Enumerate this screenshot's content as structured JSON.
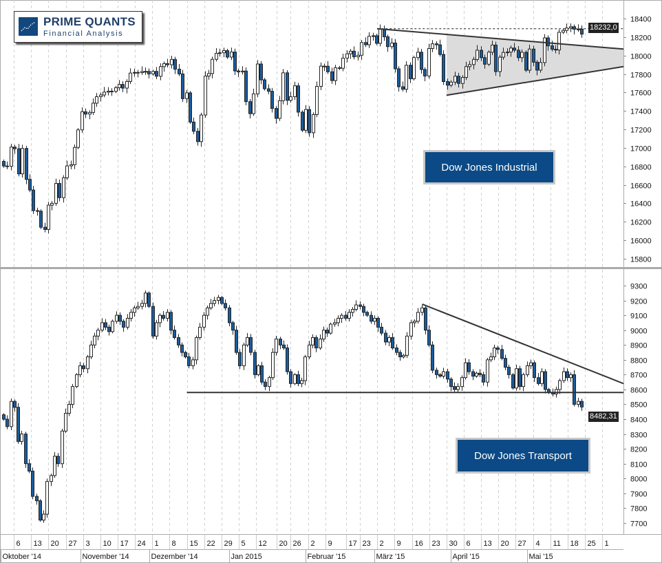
{
  "logo": {
    "title": "PRIME QUANTS",
    "subtitle": "Financial Analysis"
  },
  "colors": {
    "down_candle": "#1a5c9e",
    "up_candle": "#ffffff",
    "outline": "#222222",
    "triangle_fill": "#dcdcdc",
    "tag_bg": "#0b4a86"
  },
  "chart_data": [
    {
      "type": "candlestick",
      "title": "Dow Jones Industrial",
      "start_date": "2014-10-01",
      "end_date": "2015-05-22",
      "last_price_label": "18232,0",
      "ylim": [
        15700,
        18500
      ],
      "yticks": [
        18400,
        18200,
        18000,
        17800,
        17600,
        17400,
        17200,
        17000,
        16800,
        16600,
        16400,
        16200,
        16000,
        15800
      ],
      "closes": [
        16804,
        16801,
        17009,
        16991,
        16719,
        16994,
        16659,
        16544,
        16321,
        16315,
        16141,
        16117,
        16380,
        16400,
        16615,
        16461,
        16677,
        16805,
        16818,
        17005,
        17195,
        17391,
        17366,
        17384,
        17484,
        17554,
        17573,
        17604,
        17614,
        17612,
        17652,
        17687,
        17647,
        17719,
        17810,
        17817,
        17815,
        17827,
        17828,
        17801,
        17828,
        17776,
        17880,
        17912,
        17900,
        17958,
        17852,
        17801,
        17533,
        17596,
        17280,
        17180,
        17068,
        17356,
        17778,
        17805,
        17959,
        18024,
        18030,
        18053,
        17983,
        18038,
        17833,
        17823,
        17832,
        17501,
        17371,
        17585,
        17908,
        17737,
        17640,
        17613,
        17427,
        17320,
        17511,
        17813,
        17515,
        17554,
        17672,
        17387,
        17191,
        17416,
        17164,
        17361,
        17666,
        17885,
        17884,
        17824,
        17729,
        17868,
        17862,
        17972,
        18019,
        18047,
        17986,
        18003,
        18141,
        18117,
        18209,
        18214,
        18132,
        18288,
        18203,
        18096,
        18136,
        17856,
        17662,
        17635,
        17895,
        17749,
        17978,
        18036,
        17849,
        17778,
        18076,
        18127,
        18116,
        18012,
        17718,
        17679,
        17712,
        17776,
        17698,
        17763,
        17880,
        17902,
        17958,
        18057,
        17977,
        17906,
        18036,
        18113,
        17826,
        17982,
        18034,
        18038,
        18081,
        18058,
        17977,
        18035,
        17841,
        18070,
        17928,
        17842,
        17924,
        18191,
        18105,
        18068,
        18060,
        18252,
        18272,
        18298,
        18312,
        18285,
        18286,
        18232
      ],
      "annotations": {
        "resistance_dashed": {
          "from": "2015-03-02",
          "value": 18290
        },
        "triangle_upper": {
          "from": [
            "2015-03-02",
            18290
          ],
          "to": [
            "2015-06-03",
            18070
          ]
        },
        "triangle_lower": {
          "from": [
            "2015-03-30",
            17570
          ],
          "to": [
            "2015-06-03",
            17880
          ]
        }
      }
    },
    {
      "type": "candlestick",
      "title": "Dow Jones Transport",
      "start_date": "2014-10-01",
      "end_date": "2015-05-22",
      "last_price_label": "8482,31",
      "ylim": [
        7600,
        9400
      ],
      "yticks": [
        9300,
        9200,
        9100,
        9000,
        8900,
        8800,
        8700,
        8600,
        8500,
        8400,
        8300,
        8200,
        8100,
        8000,
        7900,
        7800,
        7700
      ],
      "closes": [
        8400,
        8350,
        8520,
        8480,
        8250,
        8300,
        8100,
        8050,
        7880,
        7850,
        7720,
        7760,
        7980,
        8020,
        8150,
        8100,
        8320,
        8440,
        8500,
        8620,
        8700,
        8760,
        8740,
        8820,
        8900,
        8960,
        9000,
        9050,
        9020,
        8990,
        9060,
        9100,
        9060,
        9020,
        9080,
        9120,
        9150,
        9160,
        9180,
        9250,
        9160,
        8960,
        9050,
        9100,
        9080,
        9120,
        9000,
        8950,
        8900,
        8850,
        8820,
        8760,
        8800,
        8950,
        9020,
        9100,
        9150,
        9180,
        9200,
        9220,
        9180,
        9150,
        9050,
        9000,
        8850,
        8760,
        8900,
        8950,
        8850,
        8700,
        8760,
        8650,
        8620,
        8680,
        8850,
        8940,
        8900,
        8880,
        8720,
        8640,
        8700,
        8640,
        8660,
        8820,
        8900,
        8950,
        8880,
        8940,
        9000,
        8980,
        9040,
        9050,
        9080,
        9100,
        9080,
        9120,
        9140,
        9170,
        9160,
        9120,
        9100,
        9060,
        9080,
        9020,
        8980,
        8920,
        8950,
        8880,
        8850,
        8820,
        8830,
        8960,
        9050,
        9060,
        9120,
        9150,
        9000,
        8900,
        8730,
        8700,
        8690,
        8720,
        8670,
        8620,
        8600,
        8620,
        8680,
        8780,
        8720,
        8690,
        8710,
        8700,
        8650,
        8800,
        8820,
        8880,
        8870,
        8810,
        8750,
        8700,
        8610,
        8740,
        8620,
        8700,
        8760,
        8780,
        8680,
        8640,
        8720,
        8600,
        8580,
        8570,
        8600,
        8660,
        8720,
        8680,
        8700,
        8500,
        8520,
        8482
      ],
      "annotations": {
        "support": {
          "from": "2014-12-15",
          "value": 8580
        },
        "resistance": {
          "from": [
            "2015-03-19",
            9175
          ],
          "to": [
            "2015-06-03",
            8640
          ]
        }
      }
    }
  ],
  "x_axis": {
    "day_ticks": [
      {
        "date": "2014-10-06",
        "label": "6"
      },
      {
        "date": "2014-10-13",
        "label": "13"
      },
      {
        "date": "2014-10-20",
        "label": "20"
      },
      {
        "date": "2014-10-27",
        "label": "27"
      },
      {
        "date": "2014-11-03",
        "label": "3"
      },
      {
        "date": "2014-11-10",
        "label": "10"
      },
      {
        "date": "2014-11-17",
        "label": "17"
      },
      {
        "date": "2014-11-24",
        "label": "24"
      },
      {
        "date": "2014-12-01",
        "label": "1"
      },
      {
        "date": "2014-12-08",
        "label": "8"
      },
      {
        "date": "2014-12-15",
        "label": "15"
      },
      {
        "date": "2014-12-22",
        "label": "22"
      },
      {
        "date": "2014-12-29",
        "label": "29"
      },
      {
        "date": "2015-01-05",
        "label": "5"
      },
      {
        "date": "2015-01-12",
        "label": "12"
      },
      {
        "date": "2015-01-20",
        "label": "20"
      },
      {
        "date": "2015-01-26",
        "label": "26"
      },
      {
        "date": "2015-02-02",
        "label": "2"
      },
      {
        "date": "2015-02-09",
        "label": "9"
      },
      {
        "date": "2015-02-17",
        "label": "17"
      },
      {
        "date": "2015-02-23",
        "label": "23"
      },
      {
        "date": "2015-03-02",
        "label": "2"
      },
      {
        "date": "2015-03-09",
        "label": "9"
      },
      {
        "date": "2015-03-16",
        "label": "16"
      },
      {
        "date": "2015-03-23",
        "label": "23"
      },
      {
        "date": "2015-03-30",
        "label": "30"
      },
      {
        "date": "2015-04-06",
        "label": "6"
      },
      {
        "date": "2015-04-13",
        "label": "13"
      },
      {
        "date": "2015-04-20",
        "label": "20"
      },
      {
        "date": "2015-04-27",
        "label": "27"
      },
      {
        "date": "2015-05-04",
        "label": "4"
      },
      {
        "date": "2015-05-11",
        "label": "11"
      },
      {
        "date": "2015-05-18",
        "label": "18"
      },
      {
        "date": "2015-05-25",
        "label": "25"
      },
      {
        "date": "2015-06-01",
        "label": "1"
      }
    ],
    "months": [
      {
        "date": "2014-10-01",
        "label": "Oktober '14"
      },
      {
        "date": "2014-11-03",
        "label": "November '14"
      },
      {
        "date": "2014-12-01",
        "label": "Dezember '14"
      },
      {
        "date": "2015-01-01",
        "label": "Jan 2015"
      },
      {
        "date": "2015-02-02",
        "label": "Februar '15"
      },
      {
        "date": "2015-03-02",
        "label": "März '15"
      },
      {
        "date": "2015-04-01",
        "label": "April '15"
      },
      {
        "date": "2015-05-01",
        "label": "Mai '15"
      }
    ]
  }
}
